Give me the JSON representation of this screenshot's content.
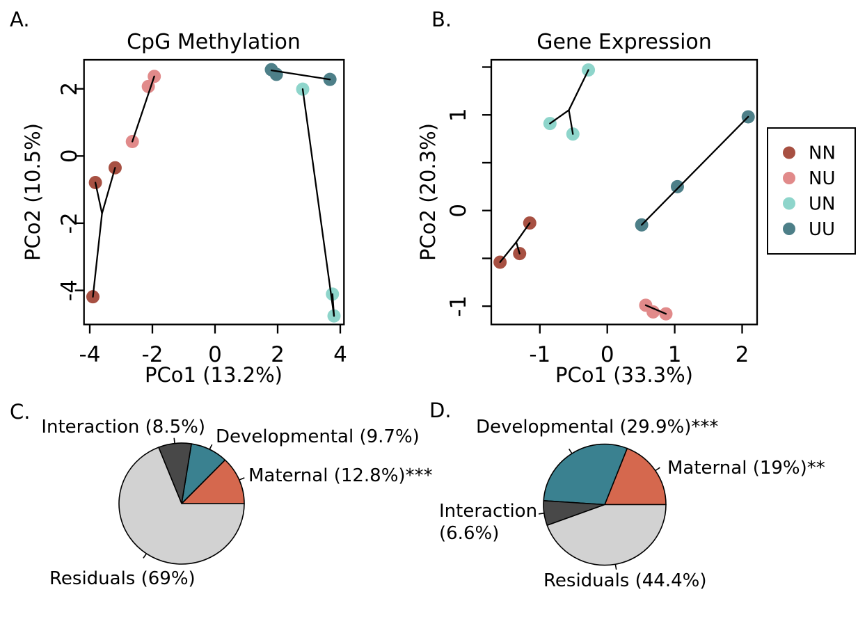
{
  "figure": {
    "panel_letters": {
      "a": "A.",
      "b": "B.",
      "c": "C.",
      "d": "D."
    }
  },
  "legend": {
    "entries": [
      {
        "label": "NN",
        "color": "#a75042"
      },
      {
        "label": "NU",
        "color": "#e18a8a"
      },
      {
        "label": "UN",
        "color": "#8ed5cb"
      },
      {
        "label": "UU",
        "color": "#4d7f88"
      }
    ]
  },
  "chart_data": [
    {
      "type": "scatter",
      "panel": "A",
      "title": "CpG Methylation",
      "xlabel": "PCo1 (13.2%)",
      "ylabel": "PCo2 (10.5%)",
      "xlim": [
        -4.2,
        4.1
      ],
      "ylim": [
        -5.05,
        2.9
      ],
      "grid": false,
      "xticks": [
        {
          "v": -4,
          "label": "-4"
        },
        {
          "v": -2,
          "label": "-2"
        },
        {
          "v": 0,
          "label": "0"
        },
        {
          "v": 2,
          "label": "2"
        },
        {
          "v": 4,
          "label": "4"
        }
      ],
      "yticks": [
        {
          "v": 2,
          "label": "2"
        },
        {
          "v": 0,
          "label": "0"
        },
        {
          "v": -2,
          "label": "-2"
        },
        {
          "v": -4,
          "label": "-4"
        }
      ],
      "series": [
        {
          "name": "NN",
          "color": "#a75042",
          "points": [
            [
              -3.82,
              -0.79
            ],
            [
              -3.19,
              -0.35
            ],
            [
              -3.9,
              -4.19
            ]
          ]
        },
        {
          "name": "NU",
          "color": "#e18a8a",
          "points": [
            [
              -2.64,
              0.43
            ],
            [
              -2.13,
              2.07
            ],
            [
              -1.94,
              2.37
            ]
          ]
        },
        {
          "name": "UN",
          "color": "#8ed5cb",
          "points": [
            [
              2.8,
              1.99
            ],
            [
              3.75,
              -4.11
            ],
            [
              3.8,
              -4.76
            ]
          ]
        },
        {
          "name": "UU",
          "color": "#4d7f88",
          "points": [
            [
              1.8,
              2.57
            ],
            [
              1.96,
              2.43
            ],
            [
              3.67,
              2.28
            ]
          ]
        }
      ],
      "connectors": [
        [
          [
            -3.9,
            -4.19
          ],
          [
            -3.61,
            -1.71
          ],
          [
            -3.82,
            -0.79
          ]
        ],
        [
          [
            -3.61,
            -1.71
          ],
          [
            -3.19,
            -0.35
          ]
        ],
        [
          [
            -2.64,
            0.43
          ],
          [
            -1.94,
            2.37
          ]
        ],
        [
          [
            1.8,
            2.55
          ],
          [
            3.67,
            2.28
          ]
        ],
        [
          [
            2.8,
            1.99
          ],
          [
            3.8,
            -4.76
          ]
        ],
        [
          [
            3.75,
            -4.11
          ],
          [
            3.8,
            -4.76
          ]
        ]
      ]
    },
    {
      "type": "scatter",
      "panel": "B",
      "title": "Gene Expression",
      "xlabel": "PCo1 (33.3%)",
      "ylabel": "PCo2 (20.3%)",
      "xlim": [
        -1.72,
        2.22
      ],
      "ylim": [
        -1.19,
        1.59
      ],
      "grid": false,
      "xticks": [
        {
          "v": -1,
          "label": "-1"
        },
        {
          "v": 0,
          "label": "0"
        },
        {
          "v": 1,
          "label": "1"
        },
        {
          "v": 2,
          "label": "2"
        }
      ],
      "yticks": [
        {
          "v": 1.5,
          "label": ""
        },
        {
          "v": 1,
          "label": "1"
        },
        {
          "v": 0.5,
          "label": ""
        },
        {
          "v": 0,
          "label": "0"
        },
        {
          "v": -0.5,
          "label": ""
        },
        {
          "v": -1,
          "label": "-1"
        }
      ],
      "series": [
        {
          "name": "NN",
          "color": "#a75042",
          "points": [
            [
              -1.15,
              -0.13
            ],
            [
              -1.3,
              -0.45
            ],
            [
              -1.59,
              -0.54
            ]
          ]
        },
        {
          "name": "NU",
          "color": "#e18a8a",
          "points": [
            [
              0.57,
              -0.99
            ],
            [
              0.68,
              -1.06
            ],
            [
              0.87,
              -1.08
            ]
          ]
        },
        {
          "name": "UN",
          "color": "#8ed5cb",
          "points": [
            [
              -0.28,
              1.47
            ],
            [
              -0.85,
              0.91
            ],
            [
              -0.51,
              0.8
            ]
          ]
        },
        {
          "name": "UU",
          "color": "#4d7f88",
          "points": [
            [
              2.09,
              0.98
            ],
            [
              1.04,
              0.25
            ],
            [
              0.51,
              -0.15
            ]
          ]
        }
      ],
      "connectors": [
        [
          [
            -1.59,
            -0.54
          ],
          [
            -1.35,
            -0.33
          ],
          [
            -1.15,
            -0.13
          ]
        ],
        [
          [
            -1.35,
            -0.33
          ],
          [
            -1.3,
            -0.45
          ]
        ],
        [
          [
            0.57,
            -0.99
          ],
          [
            0.87,
            -1.08
          ]
        ],
        [
          [
            -0.28,
            1.47
          ],
          [
            -0.57,
            1.05
          ],
          [
            -0.85,
            0.91
          ]
        ],
        [
          [
            -0.57,
            1.05
          ],
          [
            -0.51,
            0.8
          ]
        ],
        [
          [
            0.51,
            -0.15
          ],
          [
            2.09,
            0.98
          ]
        ]
      ]
    },
    {
      "type": "pie",
      "panel": "C",
      "start_angle_deg": 0,
      "direction": "counterclockwise",
      "slices": [
        {
          "label": "Maternal (12.8%)***",
          "value": 12.8,
          "color": "#d5684e"
        },
        {
          "label": "Developmental (9.7%)",
          "value": 9.7,
          "color": "#3a8190"
        },
        {
          "label": "Interaction (8.5%)",
          "value": 8.5,
          "color": "#484848"
        },
        {
          "label": "Residuals (69%)",
          "value": 69,
          "color": "#d2d2d2"
        }
      ]
    },
    {
      "type": "pie",
      "panel": "D",
      "start_angle_deg": 0,
      "direction": "counterclockwise",
      "slices": [
        {
          "label": "Maternal (19%)**",
          "value": 19,
          "color": "#d5684e"
        },
        {
          "label": "Developmental (29.9%)***",
          "value": 29.9,
          "color": "#3a8190"
        },
        {
          "label": "Interaction (6.6%)",
          "value": 6.6,
          "color": "#484848",
          "label_lines": [
            "Interaction",
            "(6.6%)"
          ]
        },
        {
          "label": "Residuals (44.4%)",
          "value": 44.4,
          "color": "#d2d2d2"
        }
      ]
    }
  ]
}
